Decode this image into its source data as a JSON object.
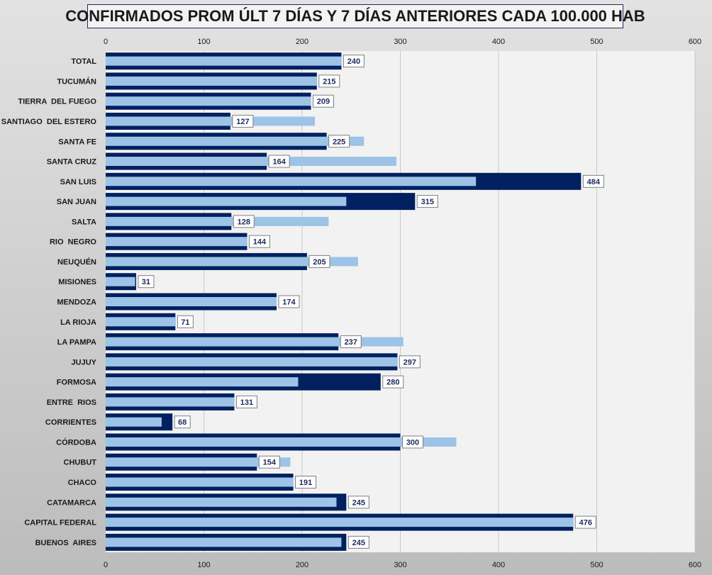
{
  "chart_data": {
    "type": "bar",
    "orientation": "horizontal",
    "title": "CONFIRMADOS PROM ÚLT 7 DÍAS Y 7 DÍAS ANTERIORES CADA 100.000 HAB",
    "xlim": [
      0,
      600
    ],
    "ticks": [
      0,
      100,
      200,
      300,
      400,
      500,
      600
    ],
    "grid": true,
    "categories": [
      "TOTAL",
      "TUCUMÁN",
      "TIERRA  DEL FUEGO",
      "SANTIAGO  DEL ESTERO",
      "SANTA FE",
      "SANTA CRUZ",
      "SAN LUIS",
      "SAN JUAN",
      "SALTA",
      "RIO  NEGRO",
      "NEUQUÉN",
      "MISIONES",
      "MENDOZA",
      "LA RIOJA",
      "LA PAMPA",
      "JUJUY",
      "FORMOSA",
      "ENTRE  RIOS",
      "CORRIENTES",
      "CÓRDOBA",
      "CHUBUT",
      "CHACO",
      "CATAMARCA",
      "CAPITAL FEDERAL",
      "BUENOS  AIRES"
    ],
    "series": [
      {
        "role": "current",
        "color": "#002060",
        "values": [
          240,
          215,
          209,
          127,
          225,
          164,
          484,
          315,
          128,
          144,
          205,
          31,
          174,
          71,
          237,
          297,
          280,
          131,
          68,
          300,
          154,
          191,
          245,
          476,
          245
        ]
      },
      {
        "role": "previous",
        "color": "#9dc3e6",
        "values": [
          240,
          215,
          209,
          213,
          263,
          296,
          377,
          245,
          227,
          144,
          257,
          30,
          174,
          71,
          303,
          297,
          196,
          131,
          57,
          357,
          188,
          191,
          235,
          476,
          240
        ]
      }
    ],
    "data_labels": [
      "240",
      "215",
      "209",
      "127",
      "225",
      "164",
      "484",
      "315",
      "128",
      "144",
      "205",
      "31",
      "174",
      "71",
      "237",
      "297",
      "280",
      "131",
      "68",
      "300",
      "154",
      "191",
      "245",
      "476",
      "245"
    ]
  }
}
